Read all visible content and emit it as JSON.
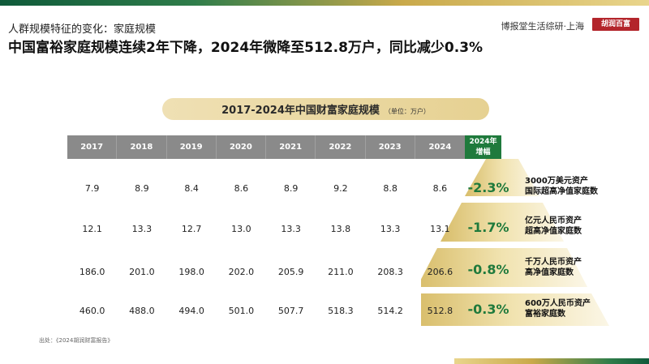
{
  "header": {
    "subtitle": "人群规模特征的变化：家庭规模",
    "title": "中国富裕家庭规模连续2年下降，2024年微降至512.8万户，同比减少0.3%",
    "brand": "博报堂生活综研·上海",
    "logo_text": "胡润百富"
  },
  "chart_data": {
    "type": "table",
    "title": "2017-2024年中国财富家庭规模",
    "unit": "（单位：万户）",
    "columns": [
      "2017",
      "2018",
      "2019",
      "2020",
      "2021",
      "2022",
      "2023",
      "2024"
    ],
    "increase_header": "2024年\n增幅",
    "rows": [
      {
        "label": "3000万美元资产\n国际超高净值家庭数",
        "values": [
          "7.9",
          "8.9",
          "8.4",
          "8.6",
          "8.9",
          "9.2",
          "8.8",
          "8.6"
        ],
        "change": "-2.3%"
      },
      {
        "label": "亿元人民币资产\n超高净值家庭数",
        "values": [
          "12.1",
          "13.3",
          "12.7",
          "13.0",
          "13.3",
          "13.8",
          "13.3",
          "13.1"
        ],
        "change": "-1.7%"
      },
      {
        "label": "千万人民币资产\n高净值家庭数",
        "values": [
          "186.0",
          "201.0",
          "198.0",
          "202.0",
          "205.9",
          "211.0",
          "208.3",
          "206.6"
        ],
        "change": "-0.8%"
      },
      {
        "label": "600万人民币资产\n富裕家庭数",
        "values": [
          "460.0",
          "488.0",
          "494.0",
          "501.0",
          "507.7",
          "518.3",
          "514.2",
          "512.8"
        ],
        "change": "-0.3%"
      }
    ]
  },
  "source": "出处：《2024胡润财富报告》",
  "colors": {
    "accent_green": "#1f7a3c",
    "header_gray": "#8a8a8a",
    "gold": "#e6d192"
  }
}
